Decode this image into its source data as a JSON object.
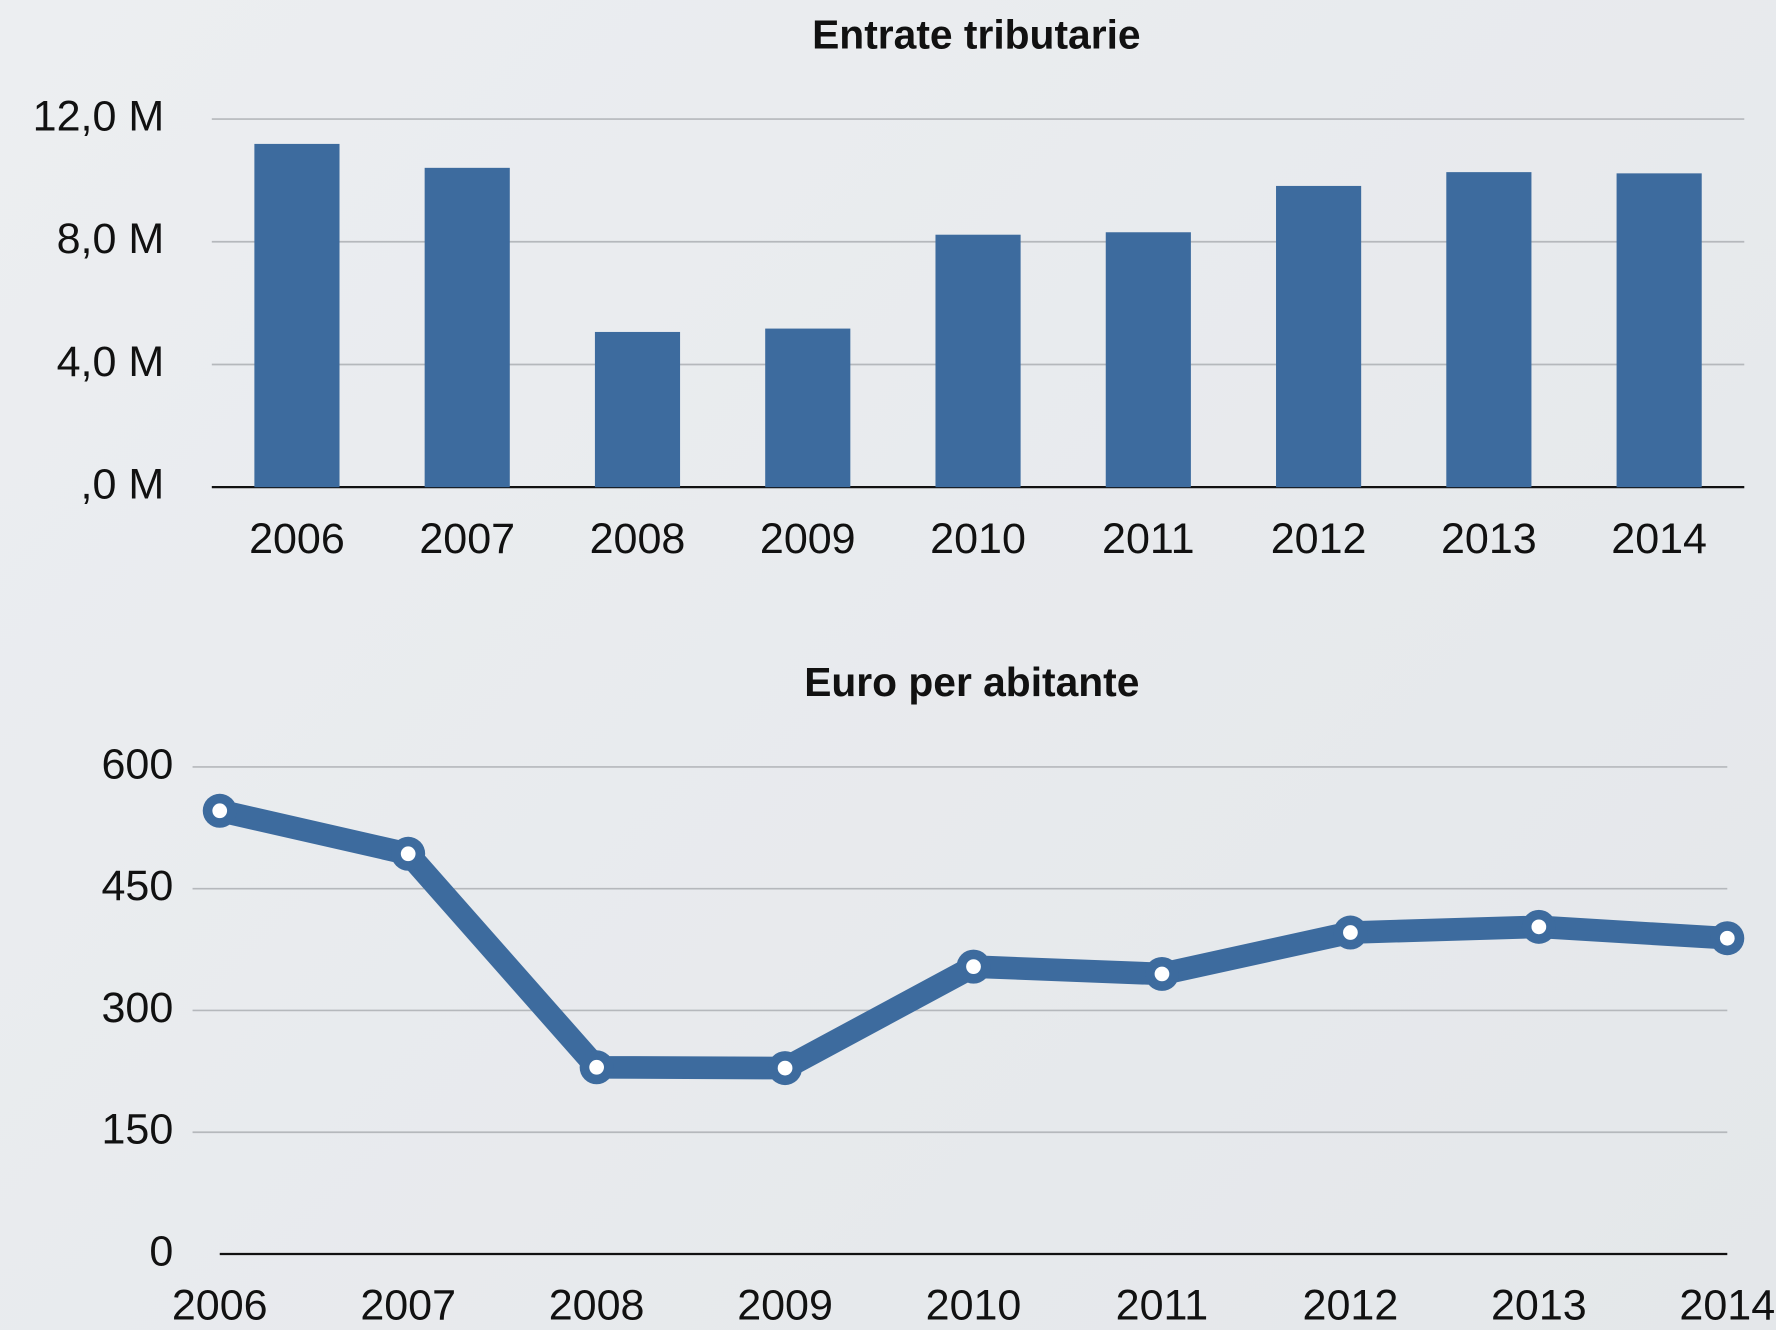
{
  "chart_data": [
    {
      "type": "bar",
      "title": "Entrate tributarie",
      "categories": [
        "2006",
        "2007",
        "2008",
        "2009",
        "2010",
        "2011",
        "2012",
        "2013",
        "2014"
      ],
      "values": [
        11.19,
        10.41,
        5.06,
        5.17,
        8.23,
        8.31,
        9.82,
        10.27,
        10.23
      ],
      "color": "#3d6b9e",
      "ylim": [
        0,
        12
      ],
      "yticks": [
        {
          "value": 0,
          "label": ",0 M"
        },
        {
          "value": 4,
          "label": "4,0 M"
        },
        {
          "value": 8,
          "label": "8,0 M"
        },
        {
          "value": 12,
          "label": "12,0 M"
        }
      ],
      "grid": true
    },
    {
      "type": "line",
      "title": "Euro per abitante",
      "categories": [
        "2006",
        "2007",
        "2008",
        "2009",
        "2010",
        "2011",
        "2012",
        "2013",
        "2014"
      ],
      "values": [
        546,
        493,
        230,
        229,
        354,
        345,
        396,
        403,
        389
      ],
      "color": "#3d6b9e",
      "ylim": [
        0,
        600
      ],
      "yticks": [
        0,
        150,
        300,
        450,
        600
      ],
      "grid": true
    }
  ]
}
